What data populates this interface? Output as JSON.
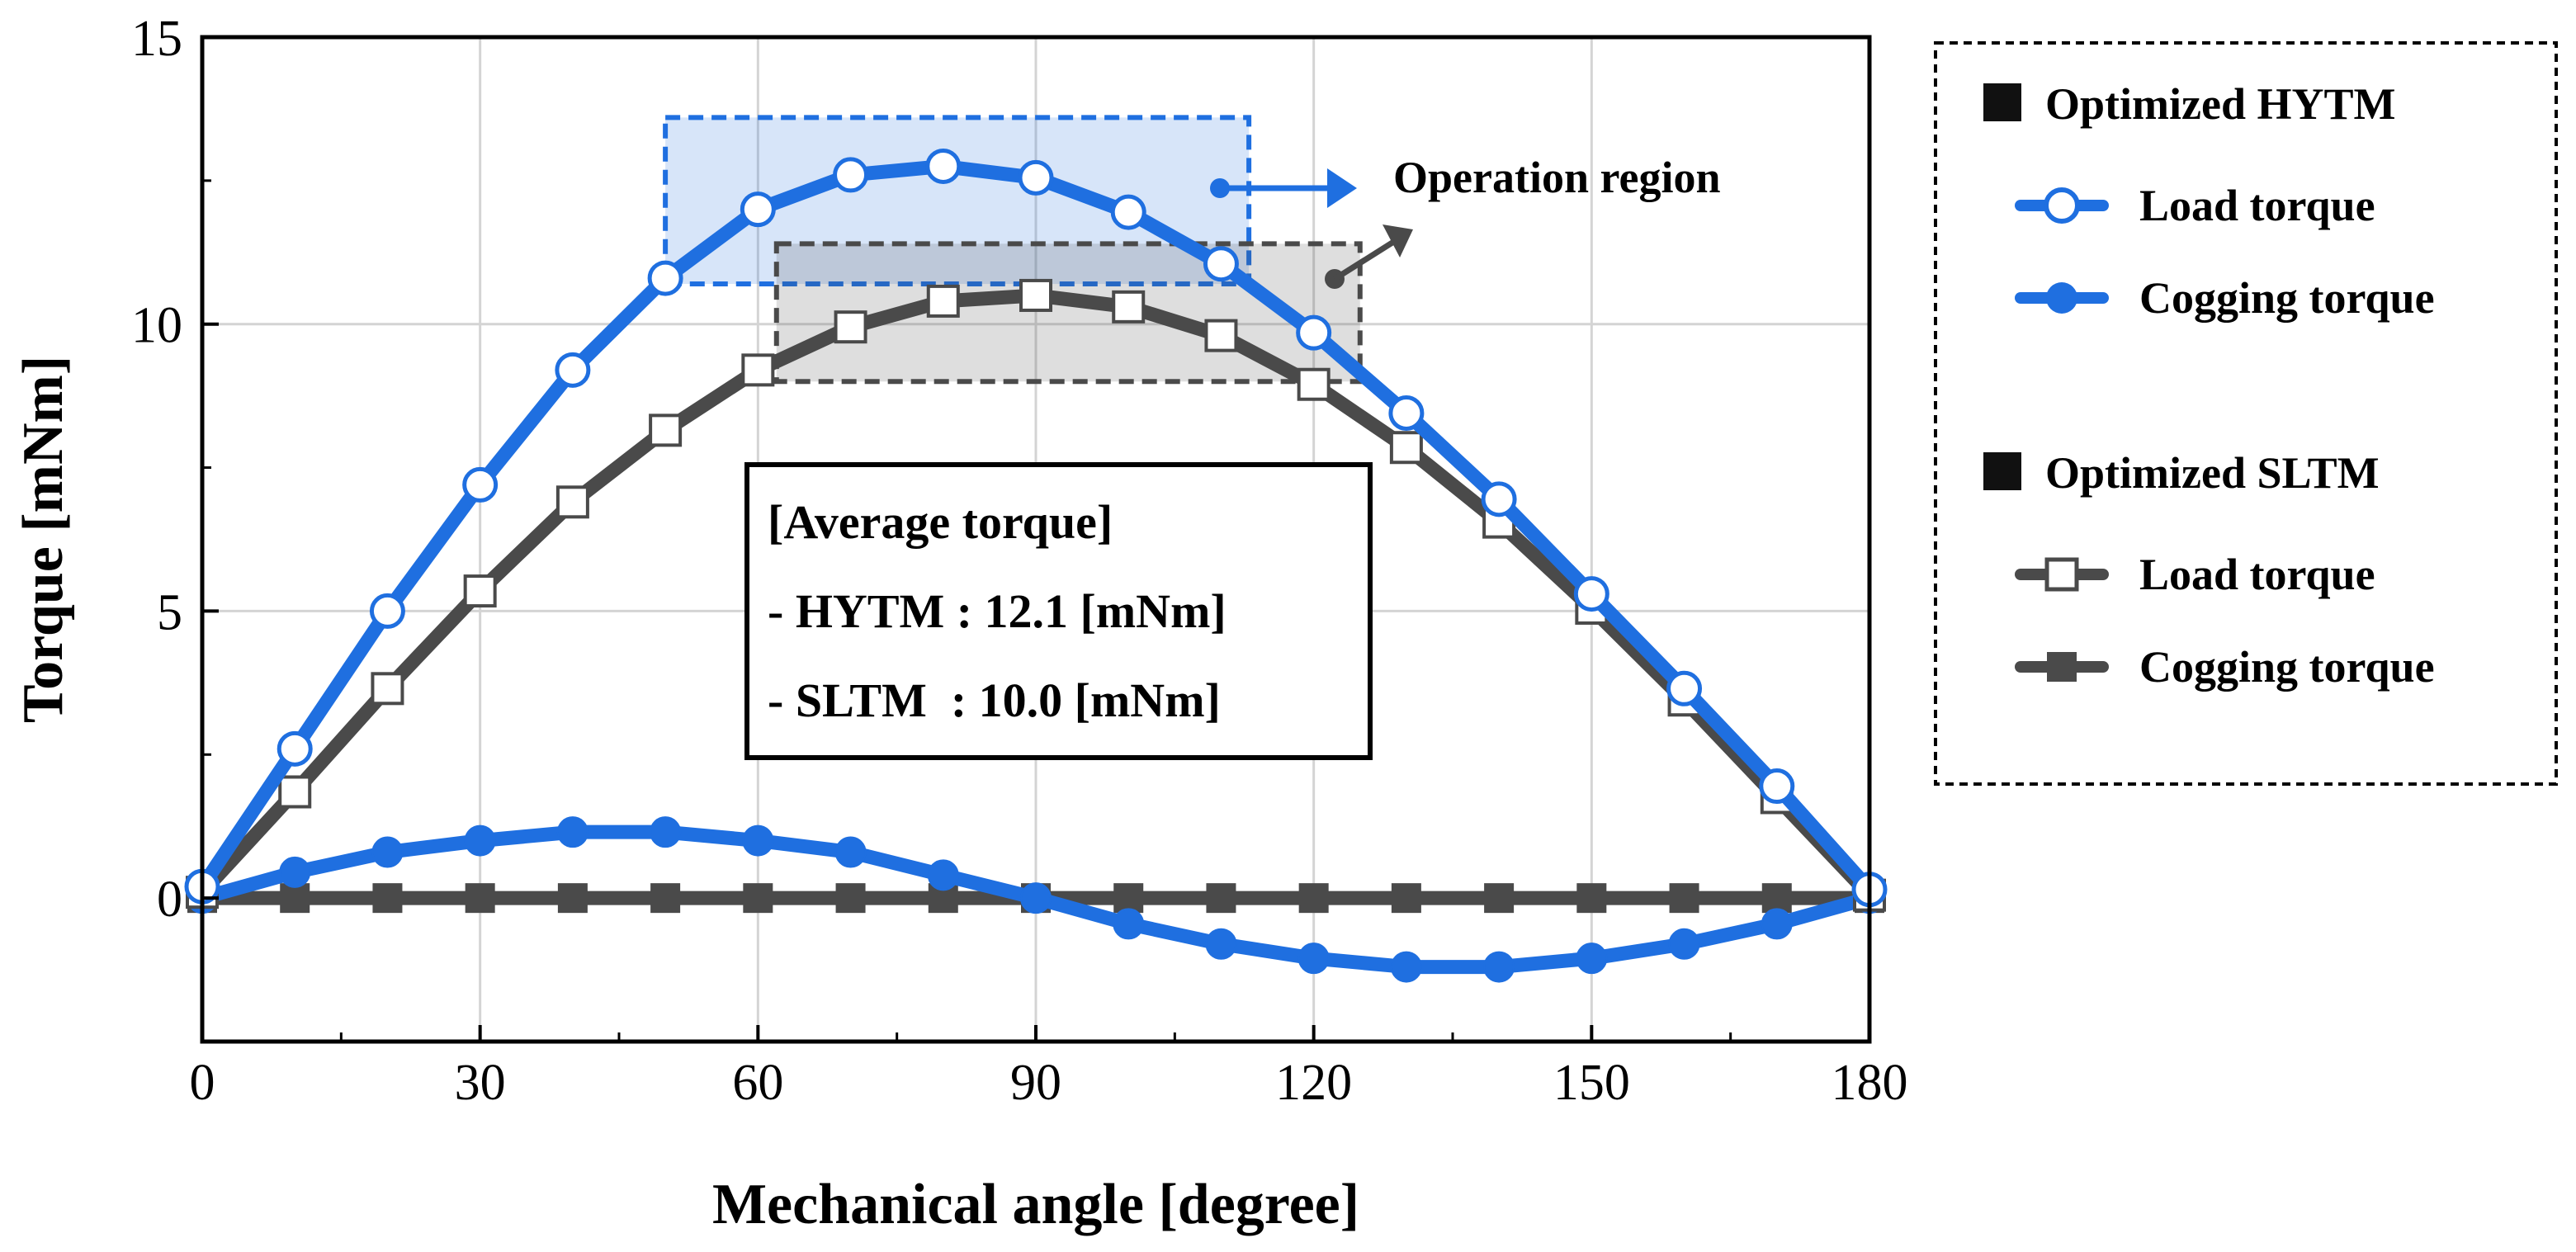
{
  "chart_data": {
    "type": "line",
    "xlabel": "Mechanical angle [degree]",
    "ylabel": "Torque [mNm]",
    "xlim": [
      0,
      180
    ],
    "ylim": [
      -2.5,
      15
    ],
    "x_ticks": [
      0,
      30,
      60,
      90,
      120,
      150,
      180
    ],
    "y_ticks": [
      0,
      5,
      10,
      15
    ],
    "grid": true,
    "colors": {
      "hytm": "#1f6fe0",
      "sltm": "#4a4a4a"
    },
    "legend": {
      "position": "right",
      "groups": [
        {
          "title": "Optimized HYTM",
          "entries": [
            {
              "label": "Load torque",
              "series": "hytm_load"
            },
            {
              "label": "Cogging torque",
              "series": "hytm_cogging"
            }
          ]
        },
        {
          "title": "Optimized SLTM",
          "entries": [
            {
              "label": "Load torque",
              "series": "sltm_load"
            },
            {
              "label": "Cogging torque",
              "series": "sltm_cogging"
            }
          ]
        }
      ]
    },
    "x": [
      0,
      10,
      20,
      30,
      40,
      50,
      60,
      70,
      80,
      90,
      100,
      110,
      120,
      130,
      140,
      150,
      160,
      170,
      180
    ],
    "series": [
      {
        "id": "hytm_load",
        "group": "Optimized HYTM",
        "name": "Load torque",
        "color": "#1f6fe0",
        "marker": "open-circle",
        "values": [
          0.2,
          2.6,
          5.0,
          7.2,
          9.2,
          10.8,
          12.0,
          12.6,
          12.75,
          12.55,
          11.95,
          11.05,
          9.85,
          8.45,
          6.95,
          5.3,
          3.65,
          1.95,
          0.15
        ]
      },
      {
        "id": "hytm_cogging",
        "group": "Optimized HYTM",
        "name": "Cogging torque",
        "color": "#1f6fe0",
        "marker": "filled-circle",
        "values": [
          0.0,
          0.45,
          0.8,
          1.0,
          1.15,
          1.15,
          1.0,
          0.8,
          0.4,
          0.0,
          -0.45,
          -0.8,
          -1.05,
          -1.2,
          -1.2,
          -1.05,
          -0.8,
          -0.45,
          0.0
        ]
      },
      {
        "id": "sltm_load",
        "group": "Optimized SLTM",
        "name": "Load torque",
        "color": "#4a4a4a",
        "marker": "open-square",
        "values": [
          0.1,
          1.85,
          3.65,
          5.35,
          6.9,
          8.15,
          9.2,
          9.95,
          10.4,
          10.5,
          10.3,
          9.8,
          8.95,
          7.85,
          6.55,
          5.05,
          3.45,
          1.75,
          0.05
        ]
      },
      {
        "id": "sltm_cogging",
        "group": "Optimized SLTM",
        "name": "Cogging torque",
        "color": "#4a4a4a",
        "marker": "filled-square",
        "values": [
          0.0,
          0.0,
          0.0,
          0.0,
          0.0,
          0.0,
          0.0,
          0.0,
          0.0,
          0.0,
          0.0,
          0.0,
          0.0,
          0.0,
          0.0,
          0.0,
          0.0,
          0.0,
          0.0
        ]
      }
    ],
    "regions": [
      {
        "id": "hytm_region",
        "series": "hytm_load",
        "x_range": [
          50,
          113
        ],
        "y_range": [
          10.7,
          13.6
        ],
        "color": "#1f6fe0"
      },
      {
        "id": "sltm_region",
        "series": "sltm_load",
        "x_range": [
          62,
          125
        ],
        "y_range": [
          9.0,
          11.4
        ],
        "color": "#4a4a4a"
      }
    ],
    "annotation": {
      "label": "Operation region"
    },
    "info_box": {
      "title": "[Average torque]",
      "lines": [
        "- HYTM : 12.1 [mNm]",
        "- SLTM  : 10.0 [mNm]"
      ]
    }
  }
}
